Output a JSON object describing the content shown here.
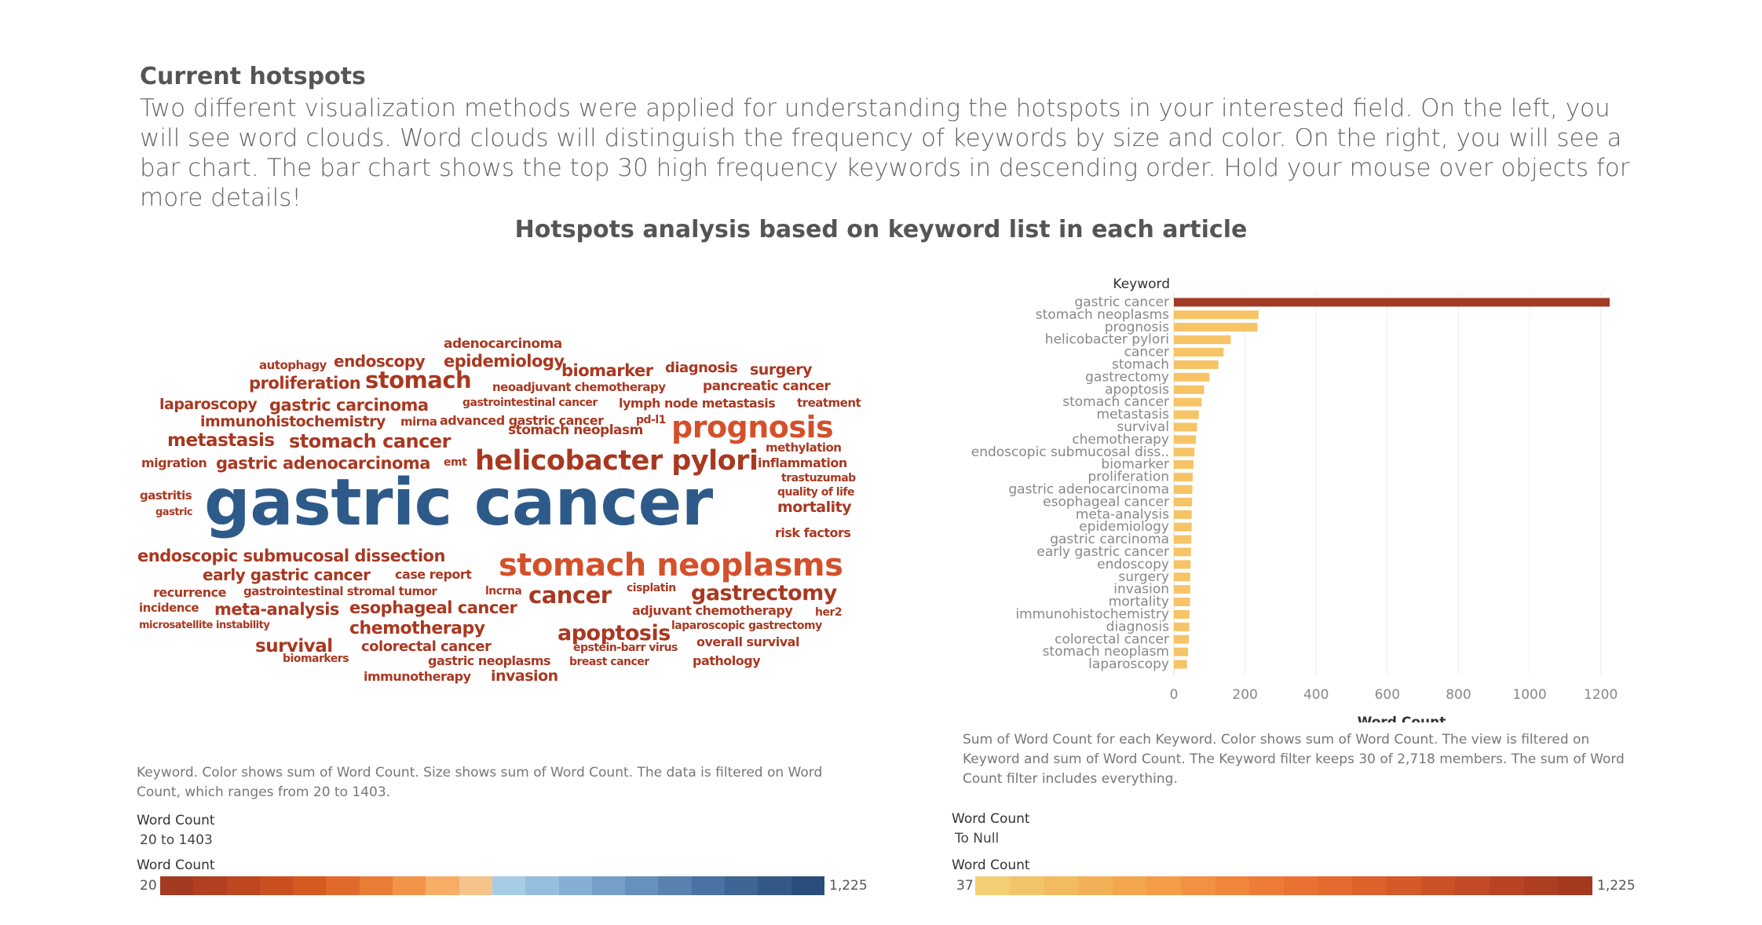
{
  "header": {
    "title": "Current hotspots",
    "description": "Two different visualization methods were applied for understanding the hotspots in your interested field. On the left, you will see word clouds. Word clouds will distinguish the frequency of keywords by size and color. On the right, you will see a bar chart. The bar chart shows the top 30 high frequency keywords in descending order. Hold your mouse over objects for more details!"
  },
  "main_title": "Hotspots analysis based on keyword list in each article",
  "colors": {
    "blue": "#2e5a8a",
    "red": "#a93821",
    "orange": "#d4502a",
    "bar": "#f6c466",
    "bar_top": "#a33a26"
  },
  "word_cloud": {
    "caption": "Keyword.  Color shows sum of Word Count.  Size shows sum of Word Count. The data is filtered on Word Count, which ranges from 20 to 1403.",
    "filter_title": "Word Count",
    "filter_value": "20 to 1403",
    "legend_title": "Word Count",
    "legend_min": "20",
    "legend_max": "1,225",
    "words": [
      "gastric cancer",
      "stomach neoplasms",
      "prognosis",
      "helicobacter pylori",
      "cancer",
      "stomach",
      "gastrectomy",
      "apoptosis",
      "stomach cancer",
      "metastasis",
      "survival",
      "chemotherapy",
      "endoscopic submucosal dissection",
      "biomarker",
      "proliferation",
      "gastric adenocarcinoma",
      "esophageal cancer",
      "meta-analysis",
      "epidemiology",
      "gastric carcinoma",
      "early gastric cancer",
      "endoscopy",
      "surgery",
      "invasion",
      "mortality",
      "immunohistochemistry",
      "diagnosis",
      "colorectal cancer",
      "stomach neoplasm",
      "laparoscopy",
      "adenocarcinoma",
      "autophagy",
      "neoadjuvant chemotherapy",
      "pancreatic cancer",
      "gastrointestinal cancer",
      "lymph node metastasis",
      "treatment",
      "mirna",
      "advanced gastric cancer",
      "pd-l1",
      "methylation",
      "inflammation",
      "migration",
      "emt",
      "trastuzumab",
      "quality of life",
      "gastritis",
      "gastric",
      "risk factors",
      "case report",
      "recurrence",
      "gastrointestinal stromal tumor",
      "lncrna",
      "cisplatin",
      "incidence",
      "adjuvant chemotherapy",
      "her2",
      "microsatellite instability",
      "laparoscopic gastrectomy",
      "epstein-barr virus",
      "overall survival",
      "biomarkers",
      "gastric neoplasms",
      "breast cancer",
      "pathology",
      "immunotherapy"
    ]
  },
  "bar_panel": {
    "caption": "Sum of Word Count for each Keyword.  Color shows sum of Word Count. The view is filtered on Keyword and sum of Word Count. The Keyword filter keeps 30 of 2,718 members. The sum of Word Count filter includes everything.",
    "filter_title": "Word Count",
    "filter_value": "To Null",
    "legend_title": "Word Count",
    "legend_min": "37",
    "legend_max": "1,225"
  },
  "chart_data": {
    "type": "bar",
    "orientation": "horizontal",
    "ylabel": "Keyword",
    "xlabel": "Word Count",
    "xlim": [
      0,
      1300
    ],
    "xticks": [
      0,
      200,
      400,
      600,
      800,
      1000,
      1200
    ],
    "grid": true,
    "categories": [
      "gastric cancer",
      "stomach neoplasms",
      "prognosis",
      "helicobacter pylori",
      "cancer",
      "stomach",
      "gastrectomy",
      "apoptosis",
      "stomach cancer",
      "metastasis",
      "survival",
      "chemotherapy",
      "endoscopic submucosal diss..",
      "biomarker",
      "proliferation",
      "gastric adenocarcinoma",
      "esophageal cancer",
      "meta-analysis",
      "epidemiology",
      "gastric carcinoma",
      "early gastric cancer",
      "endoscopy",
      "surgery",
      "invasion",
      "mortality",
      "immunohistochemistry",
      "diagnosis",
      "colorectal cancer",
      "stomach neoplasm",
      "laparoscopy"
    ],
    "values": [
      1225,
      238,
      235,
      160,
      140,
      125,
      100,
      85,
      78,
      70,
      65,
      62,
      58,
      55,
      53,
      52,
      51,
      50,
      50,
      49,
      48,
      47,
      46,
      46,
      45,
      44,
      43,
      42,
      40,
      37
    ]
  }
}
